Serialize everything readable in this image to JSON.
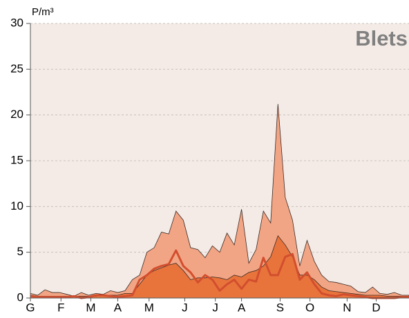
{
  "chart_data": {
    "type": "area",
    "title": "Blets",
    "y_label": "P/m³",
    "x": [
      0,
      1,
      2,
      3,
      4,
      5,
      6,
      7,
      8,
      9,
      10,
      11,
      12,
      13,
      14,
      15,
      16,
      17,
      18,
      19,
      20,
      21,
      22,
      23,
      24,
      25,
      26,
      27,
      28,
      29,
      30,
      31,
      32,
      33,
      34,
      35,
      36,
      37,
      38,
      39,
      40,
      41,
      42,
      43,
      44,
      45,
      46,
      47,
      48,
      49,
      50,
      51,
      52
    ],
    "series": [
      {
        "color": "#f2a584",
        "kind": "area",
        "values": [
          0.5,
          0.3,
          0.9,
          0.6,
          0.6,
          0.4,
          0.2,
          0.6,
          0.3,
          0.5,
          0.4,
          0.8,
          0.6,
          0.8,
          2,
          2.5,
          5,
          5.5,
          7.2,
          7,
          9.5,
          8.5,
          5.5,
          5.3,
          4.4,
          5.7,
          5,
          7.1,
          5.8,
          9.7,
          3.8,
          5.3,
          9.5,
          8.2,
          21.2,
          11,
          8.5,
          3.5,
          6.3,
          4,
          2.5,
          1.8,
          1.7,
          1.5,
          1.3,
          0.7,
          0.6,
          1.2,
          0.5,
          0.4,
          0.6,
          0.3,
          0.3
        ]
      },
      {
        "color": "#e8743c",
        "kind": "area",
        "values": [
          0.3,
          0.2,
          0.2,
          0.2,
          0.2,
          0.2,
          0.2,
          0.2,
          0.2,
          0.2,
          0.3,
          0.3,
          0.3,
          0.5,
          0.5,
          1.5,
          2.5,
          3,
          3.3,
          3.6,
          3.8,
          3,
          2,
          2.2,
          2.2,
          2.3,
          2.2,
          2,
          2.5,
          2.3,
          2.8,
          3,
          3.5,
          4.5,
          6.8,
          5.8,
          4.5,
          2.5,
          2.5,
          2,
          1.2,
          0.8,
          0.7,
          0.6,
          0.5,
          0.4,
          0.3,
          0.3,
          0.3,
          0.2,
          0.2,
          0.2,
          0.2
        ]
      },
      {
        "color": "#d24e2e",
        "kind": "line",
        "values": [
          0.2,
          0.1,
          0.1,
          0.1,
          0.1,
          0.1,
          0.2,
          0,
          0.1,
          0.3,
          0.3,
          0.2,
          0.1,
          0.2,
          0.3,
          2,
          2.5,
          3.2,
          3.5,
          3.7,
          5.2,
          3.5,
          2.8,
          1.7,
          2.5,
          2,
          0.8,
          1.5,
          2,
          1,
          2,
          1.8,
          4.4,
          2.5,
          2.5,
          4.5,
          4.8,
          2,
          2.8,
          1.5,
          0.5,
          0.3,
          0.2,
          0.4,
          0.3,
          0.2,
          0.1,
          0,
          0,
          0,
          0,
          0.1,
          0.1
        ]
      }
    ],
    "xlim": [
      0,
      52
    ],
    "xticks": [
      {
        "value": 0,
        "label": "G"
      },
      {
        "value": 4.2,
        "label": "F"
      },
      {
        "value": 8.3,
        "label": "M"
      },
      {
        "value": 12,
        "label": "A"
      },
      {
        "value": 16.3,
        "label": "M"
      },
      {
        "value": 21.2,
        "label": "J"
      },
      {
        "value": 25.4,
        "label": "J"
      },
      {
        "value": 29,
        "label": "A"
      },
      {
        "value": 34.3,
        "label": "S"
      },
      {
        "value": 38.4,
        "label": "O"
      },
      {
        "value": 43.5,
        "label": "N"
      },
      {
        "value": 47.5,
        "label": "D"
      }
    ],
    "ylim": [
      0,
      30
    ],
    "yticks": [
      0,
      5,
      10,
      15,
      20,
      25,
      30
    ],
    "grid": true
  }
}
